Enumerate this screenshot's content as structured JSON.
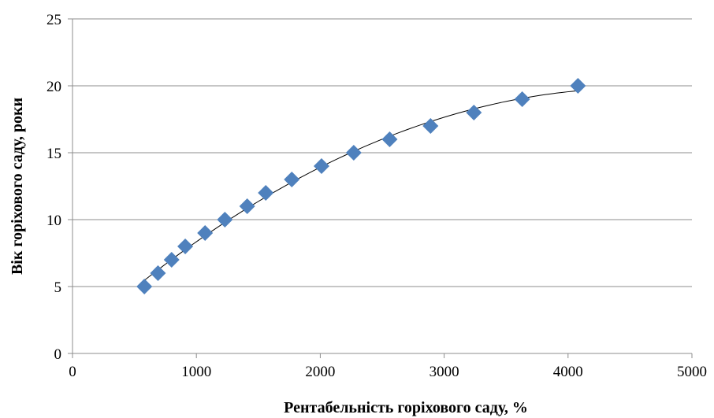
{
  "chart_data": {
    "type": "scatter",
    "title": "",
    "xlabel": "Рентабельність горіхового саду, %",
    "ylabel": "Вік горіхового саду, роки",
    "xlim": [
      0,
      5000
    ],
    "ylim": [
      0,
      25
    ],
    "x_ticks": [
      "0",
      "1000",
      "2000",
      "3000",
      "4000",
      "5000"
    ],
    "y_ticks": [
      "0",
      "5",
      "10",
      "15",
      "20",
      "25"
    ],
    "grid": "horizontal",
    "legend": "none",
    "marker": "diamond",
    "marker_color": "#4f81bd",
    "trendline": "polynomial",
    "series": [
      {
        "x": [
          580,
          690,
          800,
          910,
          1070,
          1230,
          1410,
          1560,
          1770,
          2010,
          2270,
          2560,
          2890,
          3240,
          3630,
          4080
        ],
        "y": [
          5,
          6,
          7,
          8,
          9,
          10,
          11,
          12,
          13,
          14,
          15,
          16,
          17,
          18,
          19,
          20
        ]
      }
    ]
  }
}
